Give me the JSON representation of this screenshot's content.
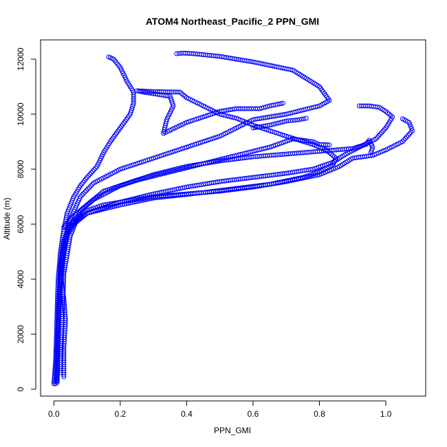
{
  "chart_data": {
    "type": "scatter",
    "title": "ATOM4 Northeast_Pacific_2 PPN_GMI",
    "xlabel": "PPN_GMI",
    "ylabel": "Altitude (m)",
    "xlim": [
      -0.04,
      1.12
    ],
    "ylim": [
      -250,
      12700
    ],
    "xticks": [
      0.0,
      0.2,
      0.4,
      0.6,
      0.8,
      1.0
    ],
    "xtick_labels": [
      "0.0",
      "0.2",
      "0.4",
      "0.6",
      "0.8",
      "1.0"
    ],
    "yticks": [
      0,
      2000,
      4000,
      6000,
      8000,
      10000,
      12000
    ],
    "ytick_labels": [
      "0",
      "2000",
      "4000",
      "6000",
      "8000",
      "10000",
      "12000"
    ],
    "marker": "open-circle",
    "color": "#0000ff",
    "grid": false,
    "legend": "none",
    "series": [
      {
        "profile_points": [
          [
            0.0,
            200
          ],
          [
            0.005,
            1000
          ],
          [
            0.008,
            2000
          ],
          [
            0.01,
            3000
          ],
          [
            0.013,
            4000
          ],
          [
            0.02,
            5000
          ],
          [
            0.03,
            5800
          ],
          [
            0.04,
            6400
          ],
          [
            0.06,
            7000
          ],
          [
            0.08,
            7400
          ],
          [
            0.1,
            7700
          ],
          [
            0.13,
            8100
          ],
          [
            0.15,
            8600
          ],
          [
            0.17,
            9000
          ],
          [
            0.2,
            9500
          ],
          [
            0.23,
            10000
          ],
          [
            0.24,
            10400
          ],
          [
            0.24,
            10800
          ],
          [
            0.22,
            11200
          ],
          [
            0.2,
            11700
          ],
          [
            0.18,
            12000
          ],
          [
            0.165,
            12080
          ]
        ]
      },
      {
        "profile_points": [
          [
            0.03,
            450
          ],
          [
            0.03,
            1500
          ],
          [
            0.035,
            2500
          ],
          [
            0.03,
            3300
          ],
          [
            0.02,
            4200
          ],
          [
            0.025,
            5000
          ],
          [
            0.04,
            5700
          ],
          [
            0.06,
            6100
          ],
          [
            0.1,
            6500
          ],
          [
            0.15,
            6700
          ],
          [
            0.2,
            6800
          ],
          [
            0.3,
            7000
          ],
          [
            0.4,
            7100
          ],
          [
            0.5,
            7200
          ],
          [
            0.6,
            7350
          ],
          [
            0.7,
            7550
          ],
          [
            0.8,
            7800
          ],
          [
            0.86,
            8100
          ],
          [
            0.9,
            8400
          ],
          [
            0.96,
            8500
          ],
          [
            1.0,
            8700
          ],
          [
            1.05,
            9000
          ],
          [
            1.08,
            9400
          ],
          [
            1.07,
            9700
          ],
          [
            1.05,
            9830
          ]
        ]
      },
      {
        "profile_points": [
          [
            0.01,
            300
          ],
          [
            0.012,
            1500
          ],
          [
            0.015,
            3000
          ],
          [
            0.02,
            4500
          ],
          [
            0.03,
            5400
          ],
          [
            0.05,
            6000
          ],
          [
            0.1,
            6400
          ],
          [
            0.2,
            6700
          ],
          [
            0.3,
            6950
          ],
          [
            0.45,
            7150
          ],
          [
            0.55,
            7300
          ],
          [
            0.65,
            7450
          ],
          [
            0.75,
            7700
          ],
          [
            0.8,
            7900
          ],
          [
            0.84,
            8150
          ],
          [
            0.85,
            8400
          ],
          [
            0.82,
            8700
          ],
          [
            0.78,
            8900
          ],
          [
            0.7,
            9200
          ],
          [
            0.6,
            9600
          ],
          [
            0.55,
            9850
          ],
          [
            0.5,
            10000
          ],
          [
            0.45,
            10300
          ],
          [
            0.4,
            10600
          ],
          [
            0.38,
            10800
          ],
          [
            0.3,
            10820
          ],
          [
            0.25,
            10850
          ],
          [
            0.27,
            10800
          ],
          [
            0.35,
            10650
          ],
          [
            0.36,
            10300
          ],
          [
            0.34,
            9800
          ],
          [
            0.33,
            9300
          ],
          [
            0.4,
            9700
          ],
          [
            0.5,
            10100
          ],
          [
            0.55,
            10200
          ],
          [
            0.62,
            10200
          ],
          [
            0.65,
            10300
          ],
          [
            0.69,
            10400
          ]
        ]
      },
      {
        "profile_points": [
          [
            0.005,
            200
          ],
          [
            0.01,
            1500
          ],
          [
            0.015,
            3200
          ],
          [
            0.025,
            4800
          ],
          [
            0.04,
            5600
          ],
          [
            0.06,
            6000
          ],
          [
            0.1,
            6400
          ],
          [
            0.2,
            6800
          ],
          [
            0.3,
            7100
          ],
          [
            0.4,
            7350
          ],
          [
            0.5,
            7550
          ],
          [
            0.6,
            7700
          ],
          [
            0.7,
            7850
          ],
          [
            0.78,
            8000
          ],
          [
            0.84,
            8250
          ],
          [
            0.88,
            8550
          ],
          [
            0.92,
            8800
          ],
          [
            0.97,
            9100
          ],
          [
            1.0,
            9500
          ],
          [
            1.02,
            9900
          ],
          [
            1.0,
            10100
          ],
          [
            0.98,
            10250
          ],
          [
            0.95,
            10300
          ],
          [
            0.92,
            10300
          ]
        ]
      },
      {
        "profile_points": [
          [
            0.01,
            250
          ],
          [
            0.012,
            2000
          ],
          [
            0.018,
            3500
          ],
          [
            0.03,
            5000
          ],
          [
            0.05,
            6200
          ],
          [
            0.08,
            7000
          ],
          [
            0.12,
            7500
          ],
          [
            0.2,
            8000
          ],
          [
            0.3,
            8400
          ],
          [
            0.4,
            8800
          ],
          [
            0.5,
            9200
          ],
          [
            0.55,
            9500
          ],
          [
            0.6,
            9800
          ],
          [
            0.7,
            10000
          ],
          [
            0.8,
            10300
          ],
          [
            0.83,
            10500
          ],
          [
            0.8,
            11000
          ],
          [
            0.76,
            11300
          ],
          [
            0.72,
            11600
          ],
          [
            0.6,
            11900
          ],
          [
            0.5,
            12100
          ],
          [
            0.42,
            12200
          ],
          [
            0.39,
            12220
          ],
          [
            0.37,
            12200
          ]
        ]
      },
      {
        "profile_points": [
          [
            0.02,
            600
          ],
          [
            0.025,
            2500
          ],
          [
            0.03,
            4200
          ],
          [
            0.05,
            5600
          ],
          [
            0.08,
            6500
          ],
          [
            0.15,
            7200
          ],
          [
            0.25,
            7600
          ],
          [
            0.35,
            7900
          ],
          [
            0.45,
            8200
          ],
          [
            0.55,
            8500
          ],
          [
            0.65,
            8800
          ],
          [
            0.72,
            9100
          ],
          [
            0.78,
            9000
          ],
          [
            0.8,
            8900
          ],
          [
            0.83,
            8880
          ]
        ]
      },
      {
        "profile_points": [
          [
            0.03,
            5900
          ],
          [
            0.06,
            6300
          ],
          [
            0.12,
            6900
          ],
          [
            0.2,
            7400
          ],
          [
            0.3,
            7800
          ],
          [
            0.4,
            8100
          ],
          [
            0.5,
            8300
          ],
          [
            0.6,
            8450
          ],
          [
            0.7,
            8550
          ],
          [
            0.8,
            8650
          ],
          [
            0.9,
            8750
          ],
          [
            0.94,
            8900
          ],
          [
            0.95,
            9050
          ],
          [
            0.96,
            8800
          ],
          [
            0.955,
            8600
          ]
        ]
      },
      {
        "profile_points": [
          [
            0.6,
            9500
          ],
          [
            0.65,
            9600
          ],
          [
            0.7,
            9750
          ],
          [
            0.74,
            9800
          ],
          [
            0.76,
            9850
          ]
        ]
      }
    ]
  }
}
